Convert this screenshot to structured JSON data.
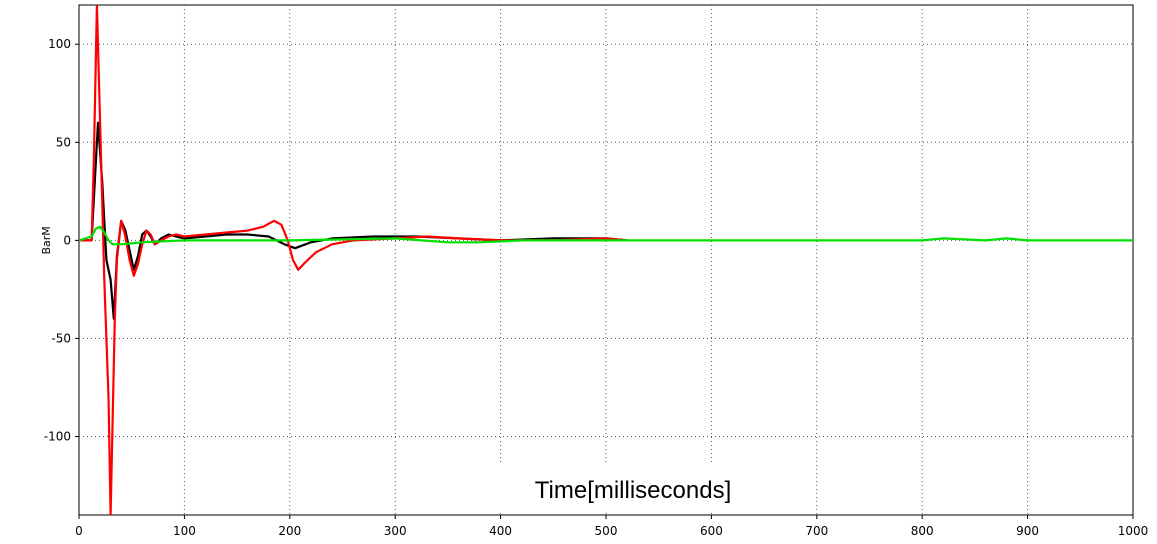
{
  "chart_data": {
    "type": "line",
    "title": "",
    "xlabel": "",
    "ylabel": "BarM",
    "annotation": "Time[milliseconds]",
    "xlim": [
      0,
      1000
    ],
    "ylim": [
      -140,
      120
    ],
    "x_ticks": [
      0,
      100,
      200,
      300,
      400,
      500,
      600,
      700,
      800,
      900,
      1000
    ],
    "y_ticks": [
      100,
      50,
      0,
      -50,
      -100
    ],
    "grid": true,
    "legend": "none",
    "series": [
      {
        "color": "#000000",
        "x": [
          0,
          12,
          15,
          18,
          22,
          26,
          30,
          33,
          36,
          40,
          44,
          48,
          52,
          56,
          60,
          64,
          68,
          72,
          78,
          85,
          92,
          100,
          120,
          140,
          160,
          180,
          195,
          205,
          220,
          240,
          280,
          320,
          360,
          400,
          450,
          500,
          520
        ],
        "y": [
          0,
          0,
          30,
          60,
          30,
          -10,
          -20,
          -40,
          -8,
          10,
          5,
          -5,
          -15,
          -8,
          3,
          5,
          2,
          -2,
          1,
          3,
          2,
          1,
          2,
          3,
          3,
          2,
          -2,
          -4,
          -1,
          1,
          2,
          2,
          1,
          0,
          1,
          1,
          0
        ]
      },
      {
        "color": "#ff0000",
        "x": [
          0,
          12,
          14,
          17,
          20,
          24,
          28,
          30,
          32,
          34,
          36,
          40,
          44,
          48,
          52,
          56,
          60,
          64,
          68,
          72,
          78,
          85,
          92,
          100,
          120,
          140,
          160,
          175,
          185,
          192,
          198,
          203,
          208,
          215,
          225,
          240,
          260,
          300,
          330,
          360,
          400,
          450,
          500,
          520
        ],
        "y": [
          0,
          0,
          40,
          120,
          60,
          -20,
          -80,
          -140,
          -90,
          -40,
          -10,
          10,
          2,
          -10,
          -18,
          -12,
          -2,
          5,
          3,
          -2,
          0,
          2,
          3,
          2,
          3,
          4,
          5,
          7,
          10,
          8,
          0,
          -10,
          -15,
          -11,
          -6,
          -2,
          0,
          1,
          2,
          1,
          0,
          0,
          1,
          0
        ]
      },
      {
        "color": "#00e000",
        "x": [
          0,
          12,
          16,
          20,
          24,
          28,
          32,
          40,
          60,
          100,
          200,
          300,
          350,
          380,
          420,
          500,
          600,
          700,
          800,
          820,
          860,
          880,
          900,
          1000
        ],
        "y": [
          0,
          2,
          6,
          7,
          4,
          0,
          -2,
          -2,
          -1,
          0,
          0,
          1,
          -1,
          -1,
          0,
          0,
          0,
          0,
          0,
          1,
          0,
          1,
          0,
          0
        ]
      }
    ]
  }
}
